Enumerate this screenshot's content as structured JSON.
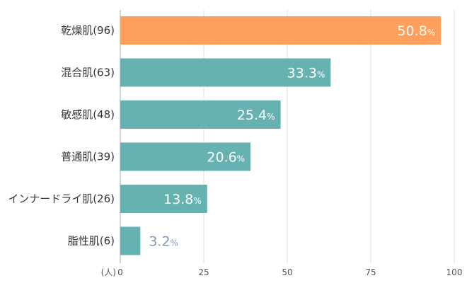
{
  "chart_data": {
    "type": "bar",
    "orientation": "horizontal",
    "categories": [
      "乾燥肌(96)",
      "混合肌(63)",
      "敏感肌(48)",
      "普通肌(39)",
      "インナードライ肌(26)",
      "脂性肌(6)"
    ],
    "values": [
      96,
      63,
      48,
      39,
      26,
      6
    ],
    "percent_labels": [
      {
        "num": "50.8",
        "unit": "%"
      },
      {
        "num": "33.3",
        "unit": "%"
      },
      {
        "num": "25.4",
        "unit": "%"
      },
      {
        "num": "20.6",
        "unit": "%"
      },
      {
        "num": "13.8",
        "unit": "%"
      },
      {
        "num": "3.2",
        "unit": "%"
      }
    ],
    "x_unit_label": "(人)",
    "x_ticks": [
      "0",
      "25",
      "50",
      "75",
      "100"
    ],
    "xlim": [
      0,
      100
    ],
    "grid": true,
    "colors": {
      "highlight": "#ff9f5e",
      "bar": "#66b2b0",
      "grid": "#dddddd",
      "axis": "#aaaaaa",
      "inside_label": "#ffffff",
      "outside_label": "#7f9ab5"
    }
  }
}
